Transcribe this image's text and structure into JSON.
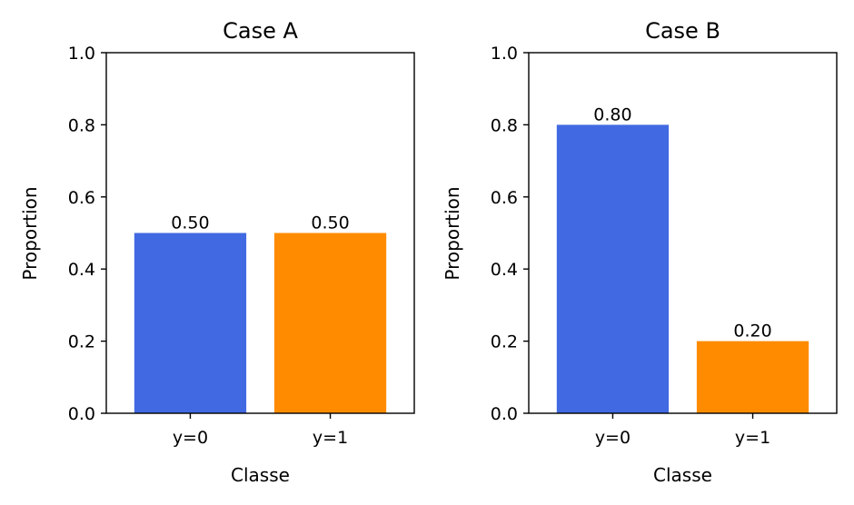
{
  "chart_data": [
    {
      "type": "bar",
      "title": "Case A",
      "xlabel": "Classe",
      "ylabel": "Proportion",
      "categories": [
        "y=0",
        "y=1"
      ],
      "values": [
        0.5,
        0.5
      ],
      "data_labels": [
        "0.50",
        "0.50"
      ],
      "colors": [
        "#4169e1",
        "#ff8c00"
      ],
      "ylim": [
        0,
        1.0
      ],
      "yticks": [
        "0.0",
        "0.2",
        "0.4",
        "0.6",
        "0.8",
        "1.0"
      ],
      "grid": false
    },
    {
      "type": "bar",
      "title": "Case B",
      "xlabel": "Classe",
      "ylabel": "Proportion",
      "categories": [
        "y=0",
        "y=1"
      ],
      "values": [
        0.8,
        0.2
      ],
      "data_labels": [
        "0.80",
        "0.20"
      ],
      "colors": [
        "#4169e1",
        "#ff8c00"
      ],
      "ylim": [
        0,
        1.0
      ],
      "yticks": [
        "0.0",
        "0.2",
        "0.4",
        "0.6",
        "0.8",
        "1.0"
      ],
      "grid": false
    }
  ]
}
